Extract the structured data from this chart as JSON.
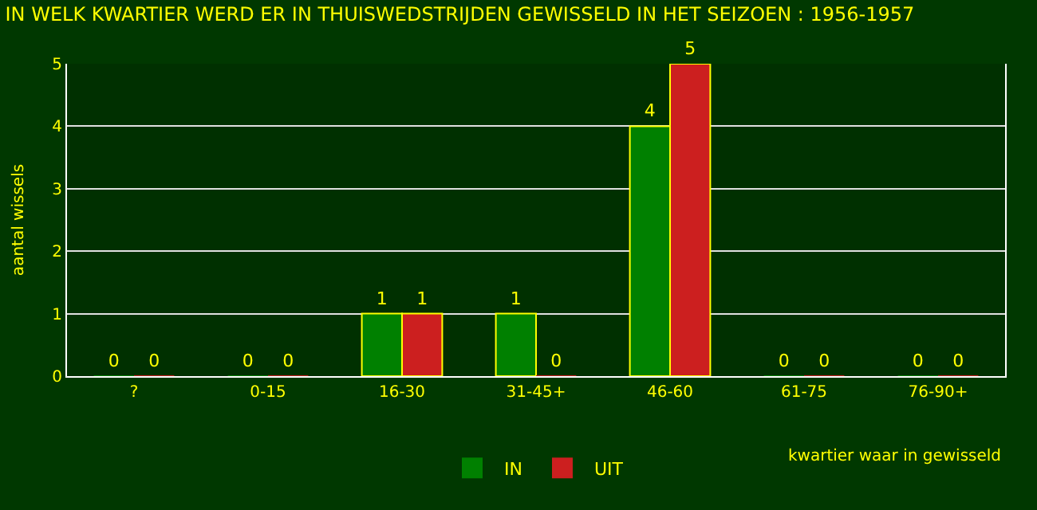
{
  "chart_data": {
    "type": "bar",
    "title": "IN WELK KWARTIER WERD ER IN THUISWEDSTRIJDEN GEWISSELD IN HET SEIZOEN : 1956-1957",
    "xlabel": "kwartier waar in gewisseld",
    "ylabel": "aantal wissels",
    "categories": [
      "?",
      "0-15",
      "16-30",
      "31-45+",
      "46-60",
      "61-75",
      "76-90+"
    ],
    "series": [
      {
        "name": "IN",
        "color": "#008000",
        "values": [
          0,
          0,
          1,
          1,
          4,
          0,
          0
        ]
      },
      {
        "name": "UIT",
        "color": "#cc1f1f",
        "values": [
          0,
          0,
          1,
          0,
          5,
          0,
          0
        ]
      }
    ],
    "ylim": [
      0,
      5
    ],
    "yticks": [
      0,
      1,
      2,
      3,
      4,
      5
    ],
    "grid": "y",
    "legend": "bottom",
    "data_labels": true
  }
}
